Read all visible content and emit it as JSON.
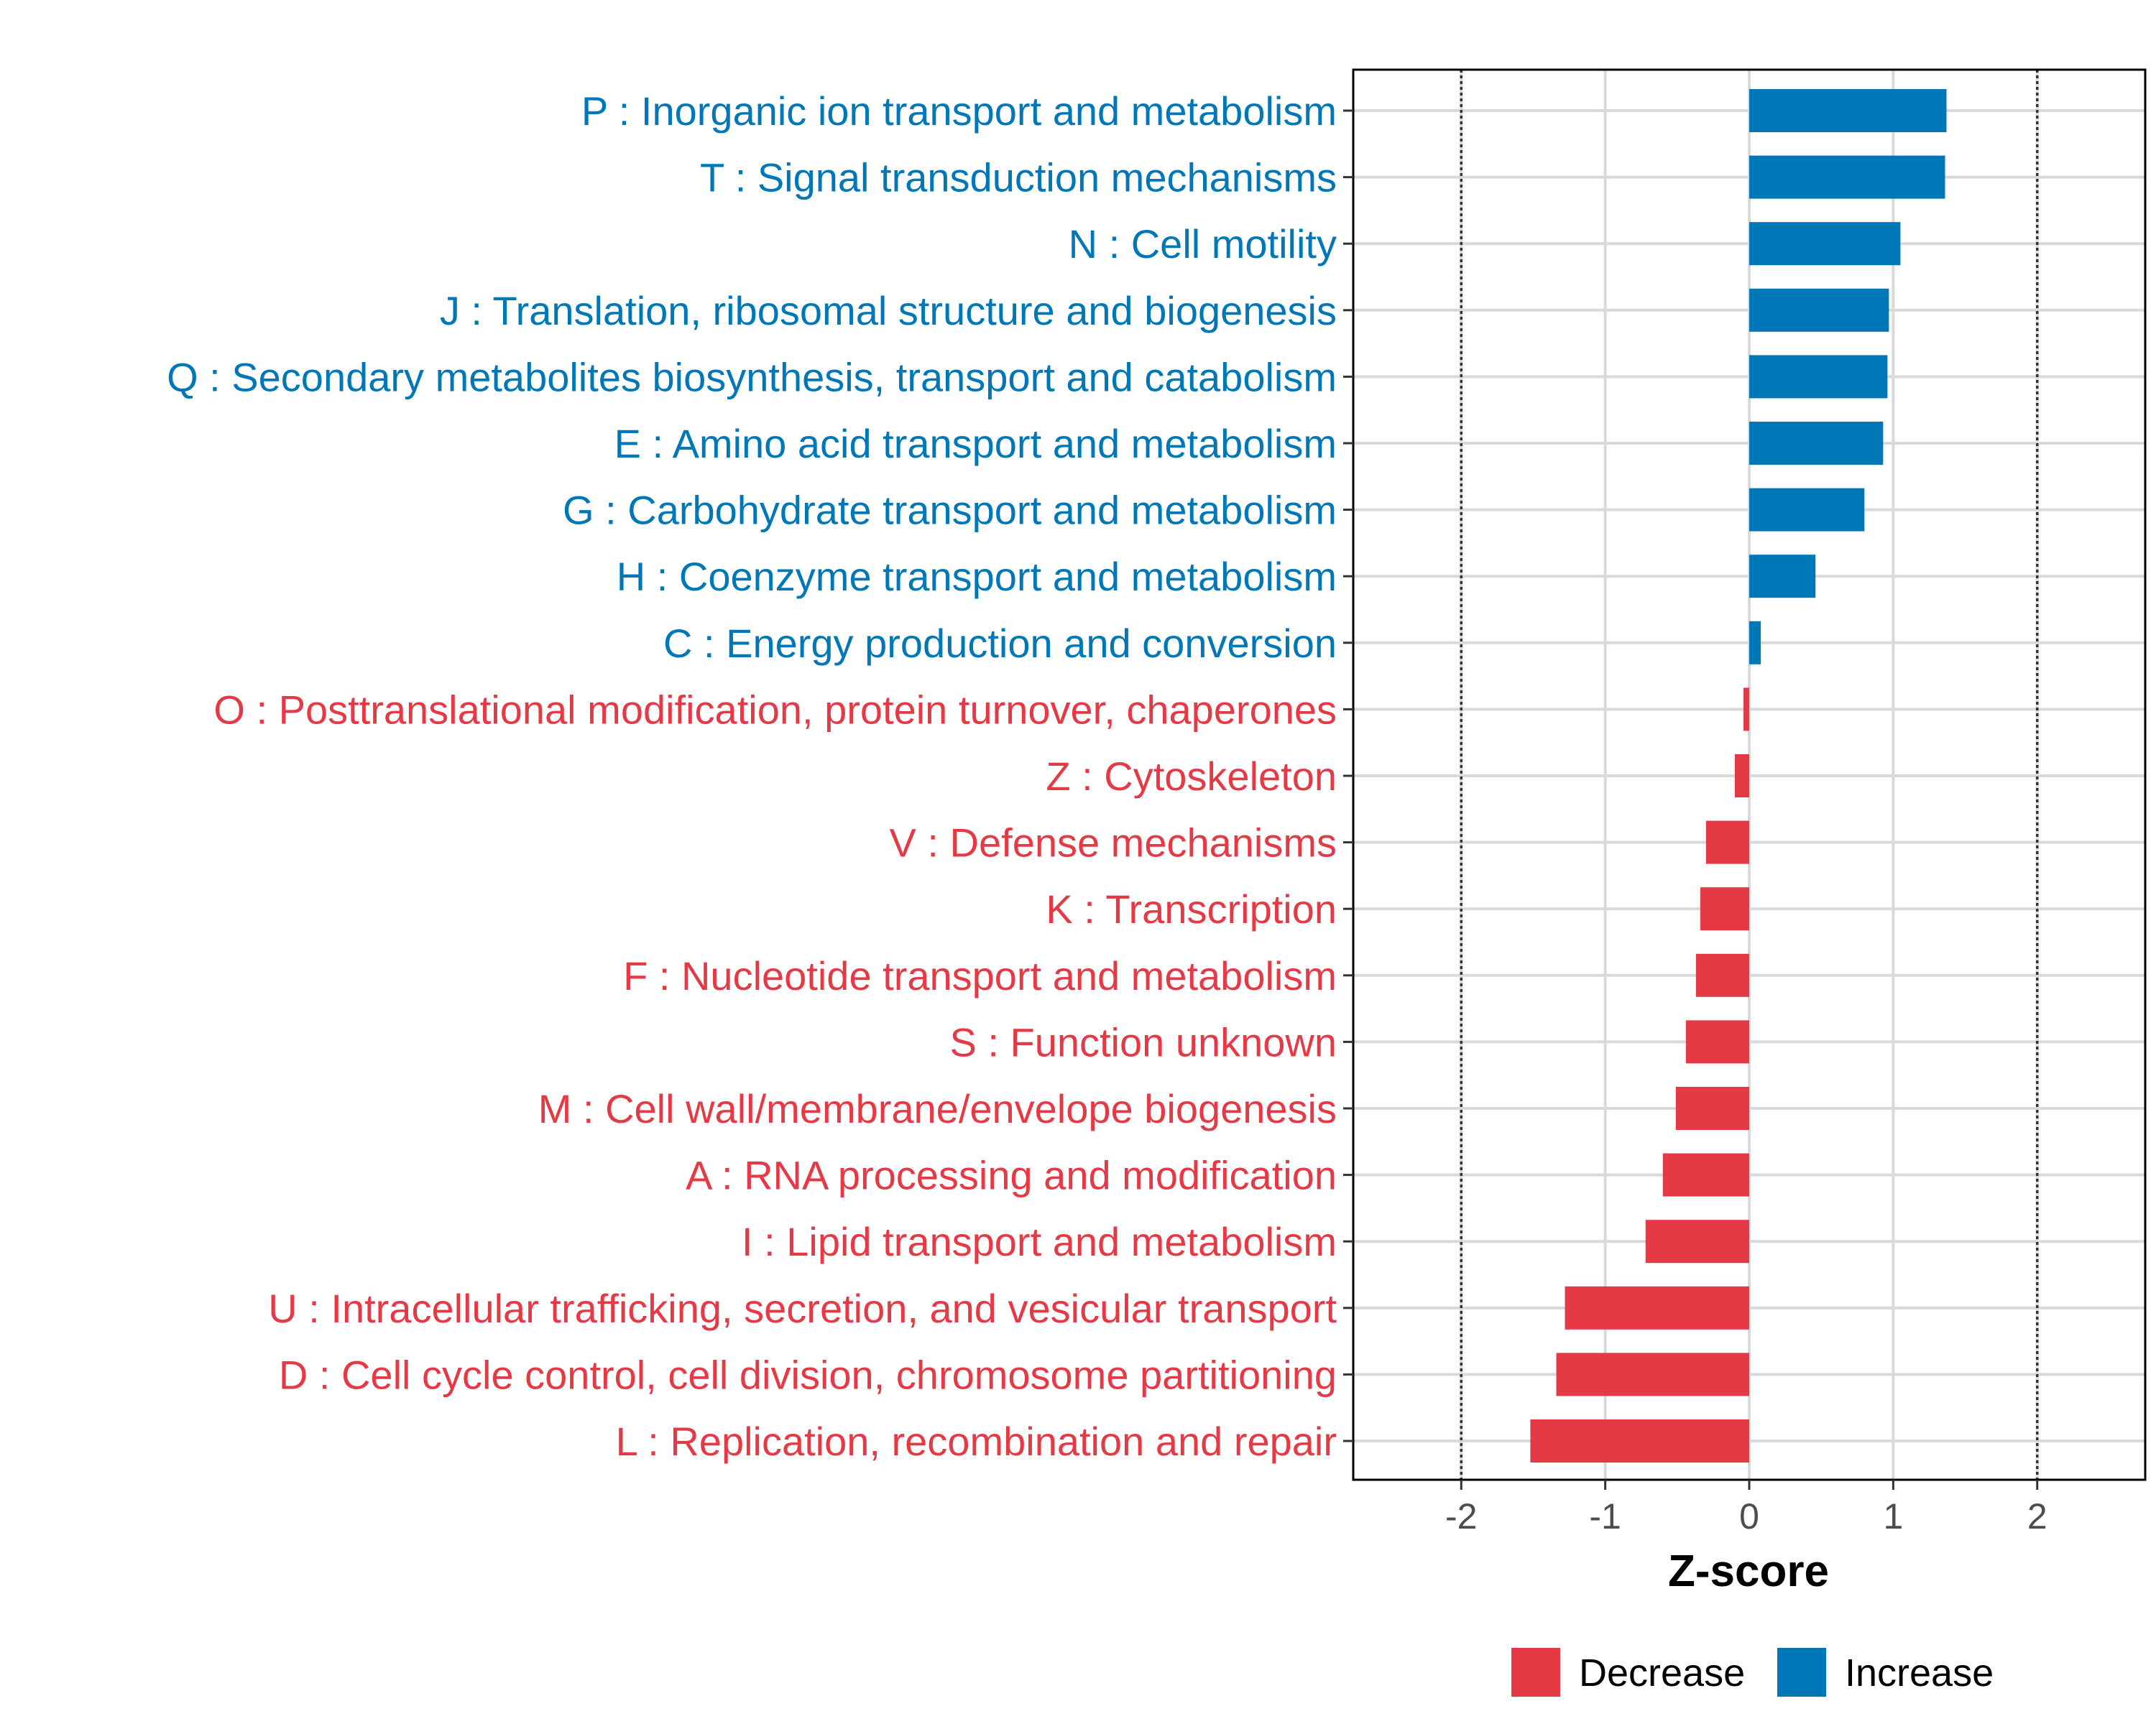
{
  "chart_data": {
    "type": "bar",
    "orientation": "horizontal",
    "title": "",
    "xlabel": "Z-score",
    "ylabel": "",
    "xlim": [
      -2.75,
      2.75
    ],
    "x_ticks": [
      -2,
      -1,
      0,
      1,
      2
    ],
    "x_tick_labels": [
      "-2",
      "-1",
      "0",
      "1",
      "2"
    ],
    "reference_lines": [
      -2,
      2
    ],
    "grid": true,
    "legend_position": "bottom",
    "series_colors": {
      "Decrease": "#e63946",
      "Increase": "#0077b6"
    },
    "legend": [
      {
        "label": "Decrease",
        "color": "#e63946"
      },
      {
        "label": "Increase",
        "color": "#0077b6"
      }
    ],
    "categories": [
      {
        "label": "P : Inorganic ion transport and metabolism",
        "value": 1.37,
        "group": "Increase"
      },
      {
        "label": "T : Signal transduction mechanisms",
        "value": 1.36,
        "group": "Increase"
      },
      {
        "label": "N : Cell motility",
        "value": 1.05,
        "group": "Increase"
      },
      {
        "label": "J : Translation, ribosomal structure and biogenesis",
        "value": 0.97,
        "group": "Increase"
      },
      {
        "label": "Q : Secondary metabolites biosynthesis, transport and catabolism",
        "value": 0.96,
        "group": "Increase"
      },
      {
        "label": "E : Amino acid transport and metabolism",
        "value": 0.93,
        "group": "Increase"
      },
      {
        "label": "G : Carbohydrate transport and metabolism",
        "value": 0.8,
        "group": "Increase"
      },
      {
        "label": "H : Coenzyme transport and metabolism",
        "value": 0.46,
        "group": "Increase"
      },
      {
        "label": "C : Energy production and conversion",
        "value": 0.08,
        "group": "Increase"
      },
      {
        "label": "O : Posttranslational modification, protein turnover, chaperones",
        "value": -0.04,
        "group": "Decrease"
      },
      {
        "label": "Z : Cytoskeleton",
        "value": -0.1,
        "group": "Decrease"
      },
      {
        "label": "V : Defense mechanisms",
        "value": -0.3,
        "group": "Decrease"
      },
      {
        "label": "K : Transcription",
        "value": -0.34,
        "group": "Decrease"
      },
      {
        "label": "F : Nucleotide transport and metabolism",
        "value": -0.37,
        "group": "Decrease"
      },
      {
        "label": "S : Function unknown",
        "value": -0.44,
        "group": "Decrease"
      },
      {
        "label": "M : Cell wall/membrane/envelope biogenesis",
        "value": -0.51,
        "group": "Decrease"
      },
      {
        "label": "A : RNA processing and modification",
        "value": -0.6,
        "group": "Decrease"
      },
      {
        "label": "I : Lipid transport and metabolism",
        "value": -0.72,
        "group": "Decrease"
      },
      {
        "label": "U : Intracellular trafficking, secretion, and vesicular transport",
        "value": -1.28,
        "group": "Decrease"
      },
      {
        "label": "D : Cell cycle control, cell division, chromosome partitioning",
        "value": -1.34,
        "group": "Decrease"
      },
      {
        "label": "L : Replication, recombination and repair",
        "value": -1.52,
        "group": "Decrease"
      }
    ]
  }
}
